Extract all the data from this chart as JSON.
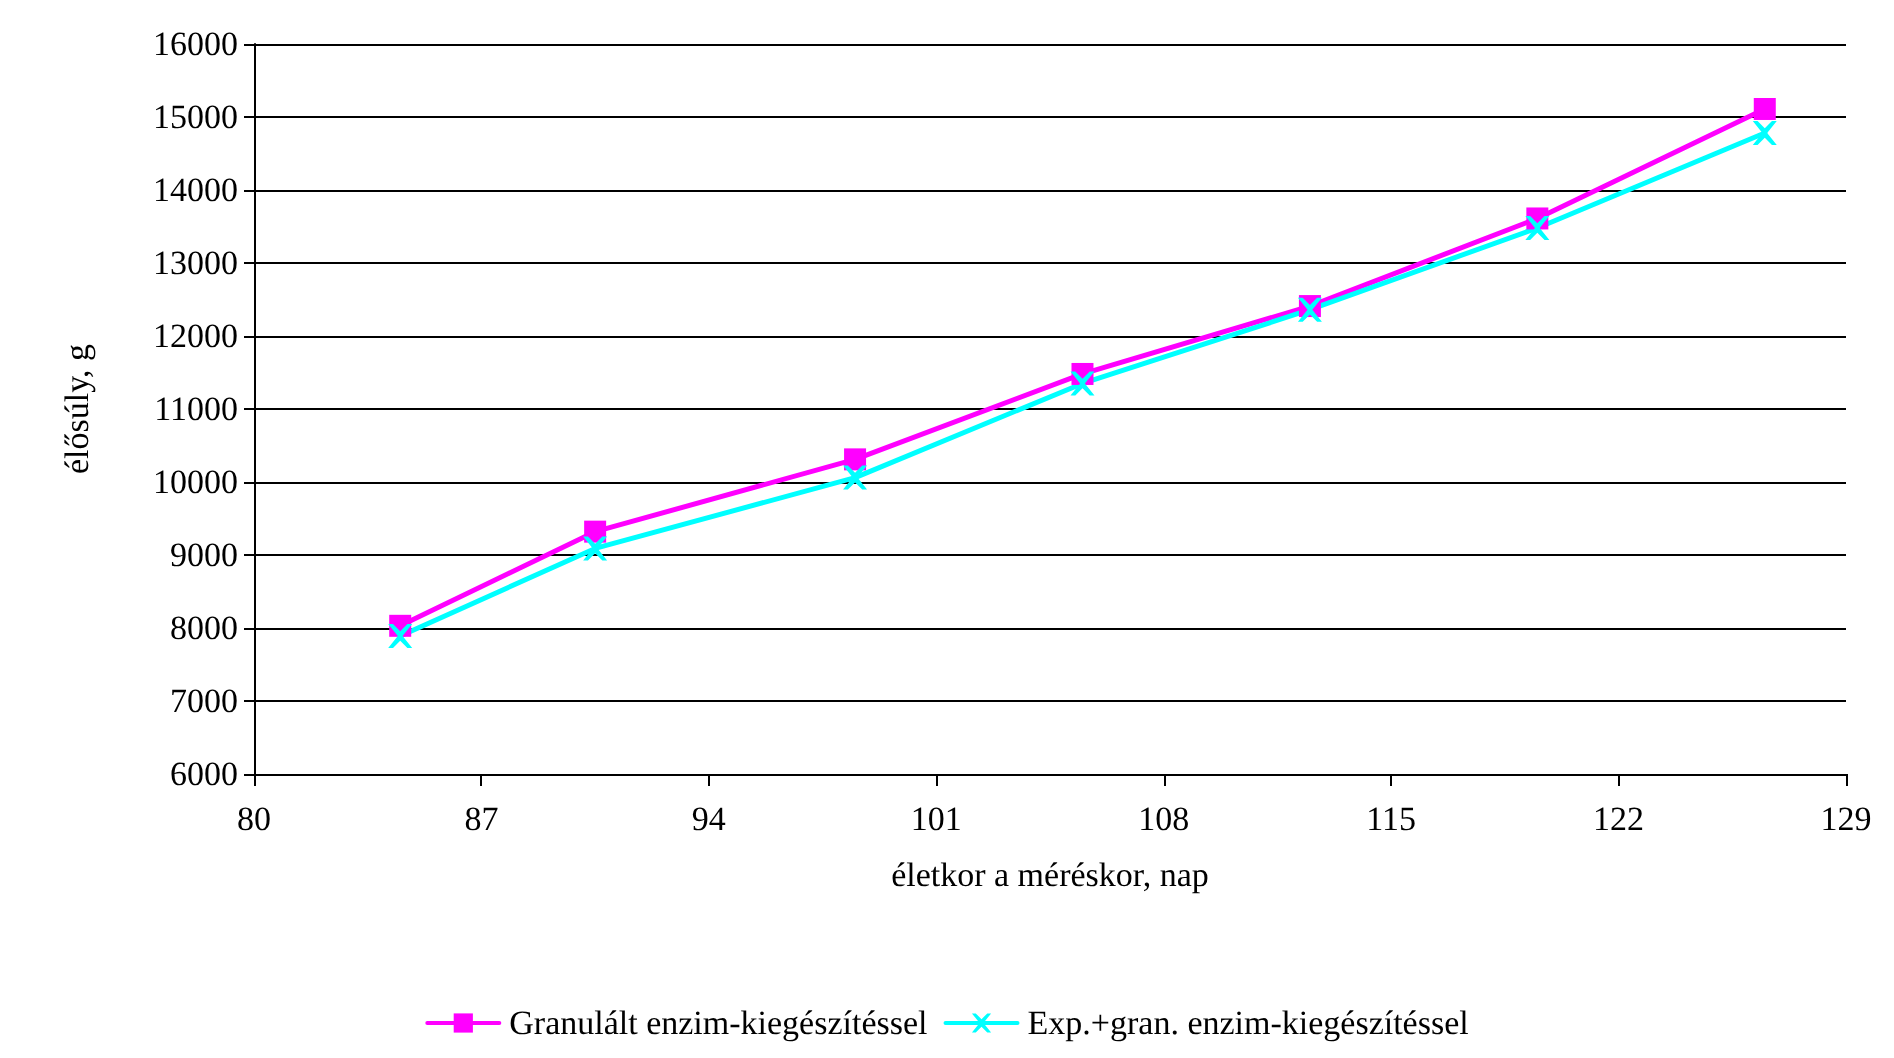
{
  "chart_data": {
    "type": "line",
    "xlabel": "életkor a méréskor, nap",
    "ylabel": "élősúly, g",
    "x": [
      84.5,
      90.5,
      98.5,
      105.5,
      112.5,
      119.5,
      126.5
    ],
    "series": [
      {
        "name": "Granulált enzim-kiegészítéssel",
        "color": "#ff00ff",
        "marker": "square",
        "values": [
          8030,
          9320,
          10310,
          11480,
          12410,
          13610,
          15110
        ]
      },
      {
        "name": "Exp.+gran. enzim-kiegészítéssel",
        "color": "#00ffff",
        "marker": "cross",
        "values": [
          7890,
          9090,
          10060,
          11350,
          12360,
          13480,
          14780
        ]
      }
    ],
    "xlim": [
      80,
      129
    ],
    "xticks": [
      80,
      87,
      94,
      101,
      108,
      115,
      122,
      129
    ],
    "ylim": [
      6000,
      16000
    ],
    "yticks": [
      6000,
      7000,
      8000,
      9000,
      10000,
      11000,
      12000,
      13000,
      14000,
      15000,
      16000
    ],
    "grid": "y",
    "legend": "bottom",
    "line_style": "solid"
  }
}
